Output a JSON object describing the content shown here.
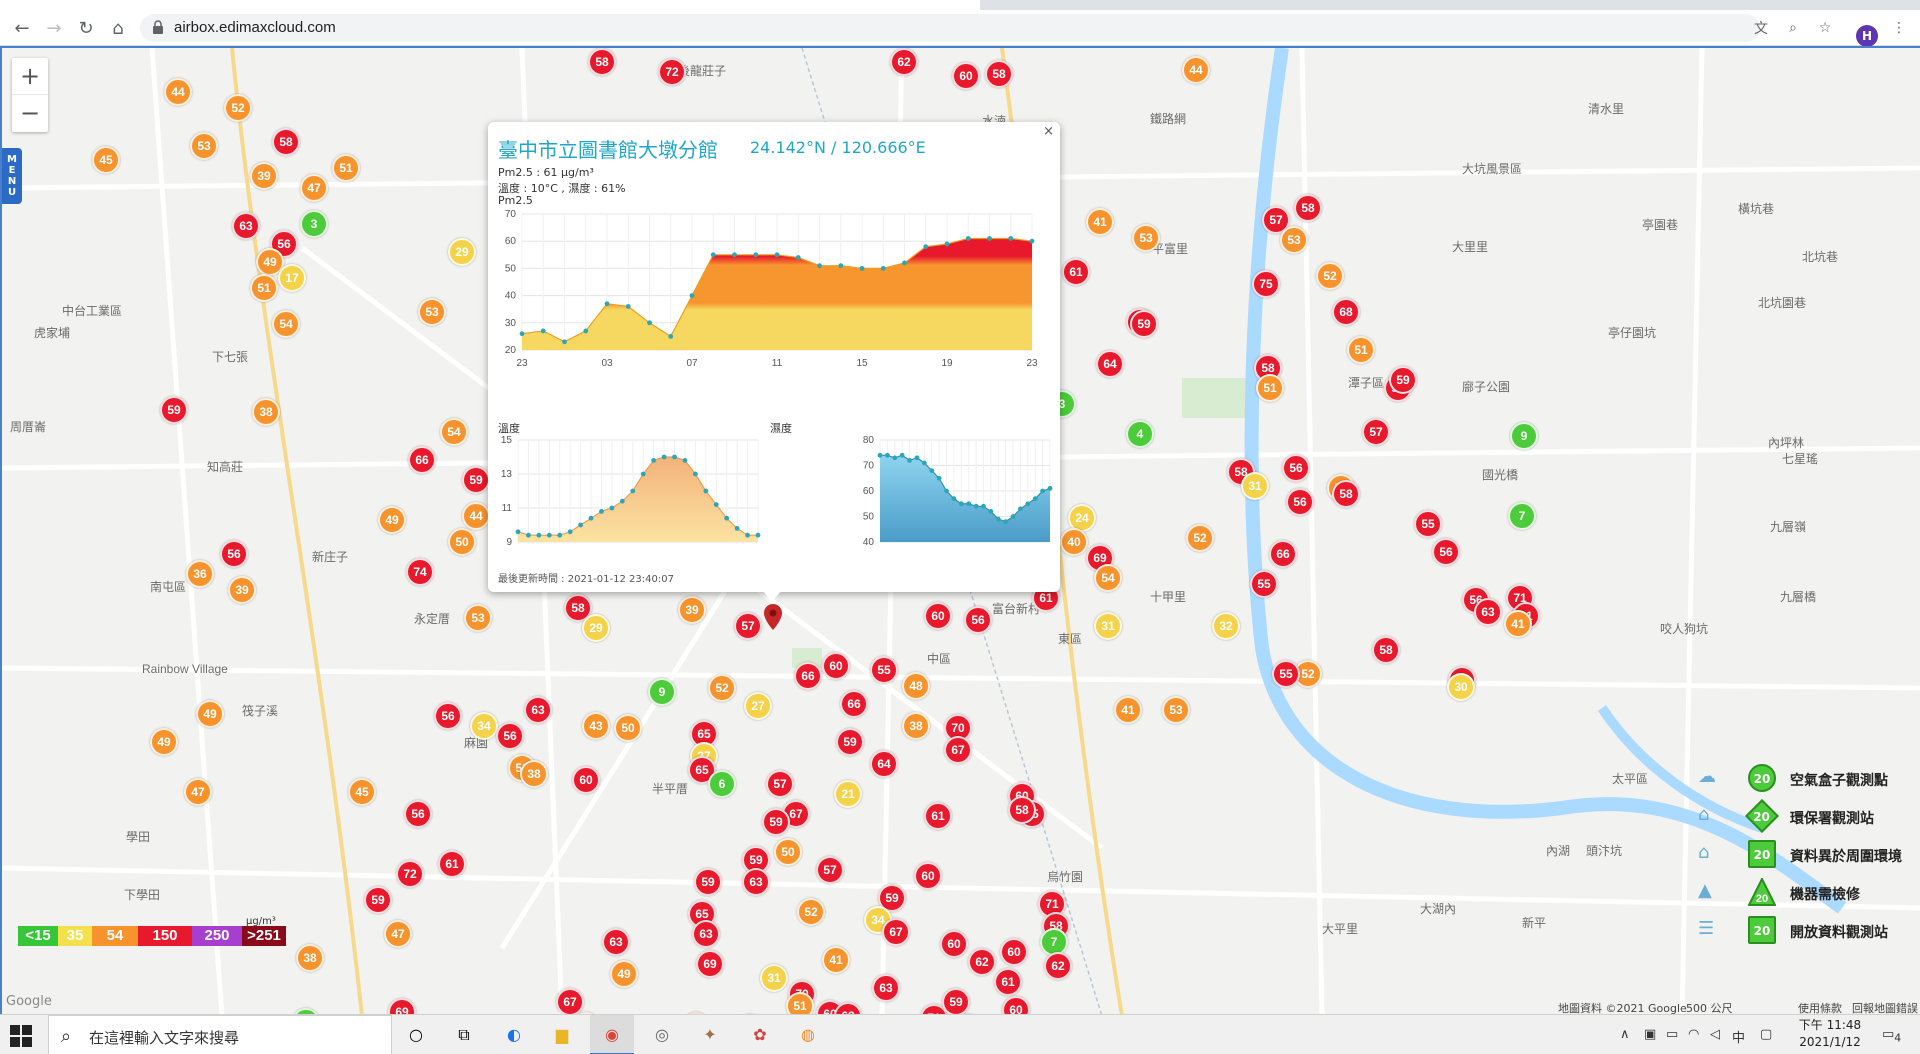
{
  "browser": {
    "url": "airbox.edimaxcloud.com",
    "profile_initial": "H"
  },
  "map": {
    "zoom_in": "+",
    "zoom_out": "−",
    "menu_label": "MENU",
    "places": [
      {
        "text": "後龍莊子"
      },
      {
        "text": "水湳"
      },
      {
        "text": "鐵路網"
      },
      {
        "text": "平富里"
      },
      {
        "text": "中台工業區"
      },
      {
        "text": "虎家埔"
      },
      {
        "text": "下七張"
      },
      {
        "text": "周厝崙"
      },
      {
        "text": "知高莊"
      },
      {
        "text": "南屯區"
      },
      {
        "text": "新庄子"
      },
      {
        "text": "永定厝"
      },
      {
        "text": "麻園"
      },
      {
        "text": "Rainbow Village"
      },
      {
        "text": "筏子溪"
      },
      {
        "text": "學田"
      },
      {
        "text": "下學田"
      },
      {
        "text": "半平厝"
      },
      {
        "text": "中區"
      },
      {
        "text": "富台新村"
      },
      {
        "text": "東區"
      },
      {
        "text": "十甲里"
      },
      {
        "text": "大坑風景區"
      },
      {
        "text": "清水里"
      },
      {
        "text": "大里里"
      },
      {
        "text": "亭園巷"
      },
      {
        "text": "橫坑巷"
      },
      {
        "text": "北坑巷"
      },
      {
        "text": "北坑園巷"
      },
      {
        "text": "亭仔園坑"
      },
      {
        "text": "廍子公園"
      },
      {
        "text": "國光橋"
      },
      {
        "text": "內坪林"
      },
      {
        "text": "七星瑤"
      },
      {
        "text": "九層嶺"
      },
      {
        "text": "九層橋"
      },
      {
        "text": "咬人狗坑"
      },
      {
        "text": "太平區"
      },
      {
        "text": "頭汴坑"
      },
      {
        "text": "內湖"
      },
      {
        "text": "大湖內"
      },
      {
        "text": "烏竹園"
      },
      {
        "text": "大平里"
      },
      {
        "text": "新平"
      },
      {
        "text": "潭子區"
      }
    ],
    "markers": [
      {
        "v": "58",
        "c": "red"
      },
      {
        "v": "72",
        "c": "red"
      },
      {
        "v": "62",
        "c": "red"
      },
      {
        "v": "60",
        "c": "red"
      },
      {
        "v": "58",
        "c": "red"
      },
      {
        "v": "44",
        "c": "orange"
      },
      {
        "v": "44",
        "c": "orange"
      },
      {
        "v": "52",
        "c": "orange"
      },
      {
        "v": "45",
        "c": "orange"
      },
      {
        "v": "53",
        "c": "orange"
      },
      {
        "v": "39",
        "c": "orange"
      },
      {
        "v": "58",
        "c": "red"
      },
      {
        "v": "51",
        "c": "orange"
      },
      {
        "v": "47",
        "c": "orange"
      },
      {
        "v": "3",
        "c": "green"
      },
      {
        "v": "63",
        "c": "red"
      },
      {
        "v": "56",
        "c": "red"
      },
      {
        "v": "49",
        "c": "orange"
      },
      {
        "v": "51",
        "c": "orange"
      },
      {
        "v": "17",
        "c": "yellow"
      },
      {
        "v": "29",
        "c": "yellow"
      },
      {
        "v": "54",
        "c": "orange"
      },
      {
        "v": "53",
        "c": "orange"
      },
      {
        "v": "59",
        "c": "red"
      },
      {
        "v": "38",
        "c": "orange"
      },
      {
        "v": "54",
        "c": "orange"
      },
      {
        "v": "66",
        "c": "red"
      },
      {
        "v": "59",
        "c": "red"
      },
      {
        "v": "49",
        "c": "orange"
      },
      {
        "v": "44",
        "c": "orange"
      },
      {
        "v": "50",
        "c": "orange"
      },
      {
        "v": "56",
        "c": "red"
      },
      {
        "v": "36",
        "c": "orange"
      },
      {
        "v": "39",
        "c": "orange"
      },
      {
        "v": "74",
        "c": "red"
      },
      {
        "v": "53",
        "c": "orange"
      },
      {
        "v": "58",
        "c": "red"
      },
      {
        "v": "29",
        "c": "yellow"
      },
      {
        "v": "39",
        "c": "orange"
      },
      {
        "v": "57",
        "c": "red"
      },
      {
        "v": "9",
        "c": "green"
      },
      {
        "v": "52",
        "c": "orange"
      },
      {
        "v": "27",
        "c": "yellow"
      },
      {
        "v": "66",
        "c": "red"
      },
      {
        "v": "66",
        "c": "red"
      },
      {
        "v": "60",
        "c": "red"
      },
      {
        "v": "55",
        "c": "red"
      },
      {
        "v": "48",
        "c": "orange"
      },
      {
        "v": "60",
        "c": "red"
      },
      {
        "v": "56",
        "c": "red"
      },
      {
        "v": "61",
        "c": "red"
      },
      {
        "v": "41",
        "c": "orange"
      },
      {
        "v": "53",
        "c": "orange"
      },
      {
        "v": "49",
        "c": "orange"
      },
      {
        "v": "56",
        "c": "red"
      },
      {
        "v": "34",
        "c": "yellow"
      },
      {
        "v": "56",
        "c": "red"
      },
      {
        "v": "63",
        "c": "red"
      },
      {
        "v": "43",
        "c": "orange"
      },
      {
        "v": "50",
        "c": "orange"
      },
      {
        "v": "65",
        "c": "red"
      },
      {
        "v": "27",
        "c": "yellow"
      },
      {
        "v": "38",
        "c": "orange"
      },
      {
        "v": "70",
        "c": "red"
      },
      {
        "v": "67",
        "c": "red"
      },
      {
        "v": "59",
        "c": "red"
      },
      {
        "v": "65",
        "c": "red"
      },
      {
        "v": "64",
        "c": "red"
      },
      {
        "v": "49",
        "c": "orange"
      },
      {
        "v": "47",
        "c": "orange"
      },
      {
        "v": "45",
        "c": "orange"
      },
      {
        "v": "52",
        "c": "orange"
      },
      {
        "v": "38",
        "c": "orange"
      },
      {
        "v": "60",
        "c": "red"
      },
      {
        "v": "6",
        "c": "green"
      },
      {
        "v": "57",
        "c": "red"
      },
      {
        "v": "21",
        "c": "yellow"
      },
      {
        "v": "67",
        "c": "red"
      },
      {
        "v": "60",
        "c": "red"
      },
      {
        "v": "65",
        "c": "red"
      },
      {
        "v": "61",
        "c": "red"
      },
      {
        "v": "58",
        "c": "red"
      },
      {
        "v": "59",
        "c": "red"
      },
      {
        "v": "50",
        "c": "orange"
      },
      {
        "v": "59",
        "c": "red"
      },
      {
        "v": "57",
        "c": "red"
      },
      {
        "v": "60",
        "c": "red"
      },
      {
        "v": "59",
        "c": "red"
      },
      {
        "v": "63",
        "c": "red"
      },
      {
        "v": "59",
        "c": "red"
      },
      {
        "v": "52",
        "c": "orange"
      },
      {
        "v": "34",
        "c": "yellow"
      },
      {
        "v": "65",
        "c": "red"
      },
      {
        "v": "63",
        "c": "red"
      },
      {
        "v": "71",
        "c": "red"
      },
      {
        "v": "58",
        "c": "red"
      },
      {
        "v": "7",
        "c": "green"
      },
      {
        "v": "67",
        "c": "red"
      },
      {
        "v": "60",
        "c": "red"
      },
      {
        "v": "62",
        "c": "red"
      },
      {
        "v": "63",
        "c": "red"
      },
      {
        "v": "69",
        "c": "red"
      },
      {
        "v": "49",
        "c": "orange"
      },
      {
        "v": "31",
        "c": "yellow"
      },
      {
        "v": "70",
        "c": "red"
      },
      {
        "v": "60",
        "c": "red"
      },
      {
        "v": "68",
        "c": "red"
      },
      {
        "v": "62",
        "c": "red"
      },
      {
        "v": "61",
        "c": "red"
      },
      {
        "v": "60",
        "c": "red"
      },
      {
        "v": "71",
        "c": "red"
      },
      {
        "v": "63",
        "c": "red"
      },
      {
        "v": "41",
        "c": "orange"
      },
      {
        "v": "62",
        "c": "red"
      },
      {
        "v": "60",
        "c": "red"
      },
      {
        "v": "62",
        "c": "red"
      },
      {
        "v": "46",
        "c": "orange"
      },
      {
        "v": "51",
        "c": "orange"
      },
      {
        "v": "59",
        "c": "red"
      },
      {
        "v": "57",
        "c": "red"
      },
      {
        "v": "60",
        "c": "red"
      },
      {
        "v": "59",
        "c": "red"
      },
      {
        "v": "54",
        "c": "orange"
      },
      {
        "v": "67",
        "c": "red"
      },
      {
        "v": "67",
        "c": "red"
      },
      {
        "v": "69",
        "c": "red"
      },
      {
        "v": "52",
        "c": "orange"
      },
      {
        "v": "2",
        "c": "green"
      },
      {
        "v": "38",
        "c": "orange"
      },
      {
        "v": "47",
        "c": "orange"
      },
      {
        "v": "59",
        "c": "red"
      },
      {
        "v": "72",
        "c": "red"
      },
      {
        "v": "61",
        "c": "red"
      },
      {
        "v": "56",
        "c": "red"
      },
      {
        "v": "61",
        "c": "red"
      },
      {
        "v": "41",
        "c": "orange"
      },
      {
        "v": "53",
        "c": "orange"
      },
      {
        "v": "58",
        "c": "red"
      },
      {
        "v": "59",
        "c": "red"
      },
      {
        "v": "64",
        "c": "red"
      },
      {
        "v": "3",
        "c": "green"
      },
      {
        "v": "4",
        "c": "green"
      },
      {
        "v": "24",
        "c": "yellow"
      },
      {
        "v": "40",
        "c": "orange"
      },
      {
        "v": "69",
        "c": "red"
      },
      {
        "v": "54",
        "c": "orange"
      },
      {
        "v": "31",
        "c": "yellow"
      },
      {
        "v": "32",
        "c": "yellow"
      },
      {
        "v": "52",
        "c": "orange"
      },
      {
        "v": "75",
        "c": "red"
      },
      {
        "v": "57",
        "c": "red"
      },
      {
        "v": "58",
        "c": "red"
      },
      {
        "v": "53",
        "c": "orange"
      },
      {
        "v": "52",
        "c": "orange"
      },
      {
        "v": "68",
        "c": "red"
      },
      {
        "v": "58",
        "c": "red"
      },
      {
        "v": "51",
        "c": "orange"
      },
      {
        "v": "51",
        "c": "orange"
      },
      {
        "v": "55",
        "c": "red"
      },
      {
        "v": "59",
        "c": "red"
      },
      {
        "v": "57",
        "c": "red"
      },
      {
        "v": "58",
        "c": "red"
      },
      {
        "v": "31",
        "c": "yellow"
      },
      {
        "v": "56",
        "c": "red"
      },
      {
        "v": "54",
        "c": "orange"
      },
      {
        "v": "58",
        "c": "red"
      },
      {
        "v": "66",
        "c": "red"
      },
      {
        "v": "55",
        "c": "red"
      },
      {
        "v": "56",
        "c": "red"
      },
      {
        "v": "55",
        "c": "red"
      },
      {
        "v": "56",
        "c": "red"
      },
      {
        "v": "9",
        "c": "green"
      },
      {
        "v": "7",
        "c": "green"
      },
      {
        "v": "71",
        "c": "red"
      },
      {
        "v": "56",
        "c": "red"
      },
      {
        "v": "63",
        "c": "red"
      },
      {
        "v": "61",
        "c": "red"
      },
      {
        "v": "41",
        "c": "orange"
      },
      {
        "v": "52",
        "c": "orange"
      },
      {
        "v": "55",
        "c": "red"
      },
      {
        "v": "58",
        "c": "red"
      },
      {
        "v": "71",
        "c": "red"
      },
      {
        "v": "30",
        "c": "yellow"
      }
    ]
  },
  "popup": {
    "close": "×",
    "title": "臺中市立圖書館大墩分館",
    "coords": "24.142°N / 120.666°E",
    "pm25_line": "Pm2.5 : 61 μg/m³",
    "temp_humidity_line": "溫度 : 10°C , 濕度 : 61%",
    "chart_label": "Pm2.5",
    "temp_label": "溫度",
    "humidity_label": "濕度",
    "updated": "最後更新時間 : 2021-01-12 23:40:07"
  },
  "chart_data": [
    {
      "type": "area",
      "title": "Pm2.5",
      "x": [
        "23",
        "",
        "",
        "",
        "03",
        "",
        "",
        "",
        "07",
        "",
        "",
        "",
        "11",
        "",
        "",
        "",
        "15",
        "",
        "",
        "",
        "19",
        "",
        "",
        "",
        "23"
      ],
      "x_ticks": [
        "23",
        "03",
        "07",
        "11",
        "15",
        "19",
        "23"
      ],
      "series": [
        {
          "values": [
            26,
            27,
            23,
            27,
            37,
            36,
            30,
            25,
            40,
            55,
            55,
            55,
            55,
            54,
            51,
            51,
            50,
            50,
            52,
            58,
            59,
            61,
            61,
            61,
            60
          ]
        }
      ],
      "ylim": [
        20,
        70
      ],
      "y_ticks": [
        20,
        30,
        40,
        50,
        60,
        70
      ],
      "band_colors": {
        "low": "#f6d860",
        "mid": "#f7962f",
        "high": "#e8192c"
      },
      "grid": true
    },
    {
      "type": "area",
      "title": "溫度",
      "series": [
        {
          "values": [
            9.6,
            9.4,
            9.4,
            9.4,
            9.4,
            9.6,
            10,
            10.4,
            10.8,
            11,
            11.4,
            12,
            13,
            13.8,
            14,
            14,
            13.8,
            13,
            12,
            11.2,
            10.4,
            9.8,
            9.4,
            9.4
          ]
        }
      ],
      "ylim": [
        9,
        15
      ],
      "y_ticks": [
        9,
        11,
        13,
        15
      ],
      "grid": true
    },
    {
      "type": "area",
      "title": "濕度",
      "series": [
        {
          "values": [
            74,
            74,
            73,
            74,
            72,
            73,
            71,
            68,
            65,
            60,
            57,
            55,
            55,
            54,
            54,
            52,
            49,
            48,
            50,
            53,
            55,
            57,
            60,
            61
          ]
        }
      ],
      "ylim": [
        40,
        80
      ],
      "y_ticks": [
        40,
        50,
        60,
        70,
        80
      ],
      "grid": true
    }
  ],
  "scale": [
    {
      "text": "<15",
      "color": "#36c63a"
    },
    {
      "text": "35",
      "color": "#f4e04a"
    },
    {
      "text": "54",
      "color": "#f7932d"
    },
    {
      "text": "150",
      "color": "#e8192c"
    },
    {
      "text": "250",
      "color": "#a83ecf"
    },
    {
      "text": ">251",
      "color": "#8b0a1a"
    }
  ],
  "scale_unit": "μg/m³",
  "legend": [
    {
      "value": "20",
      "label": "空氣盒子觀測點",
      "shape": "circle"
    },
    {
      "value": "20",
      "label": "環保署觀測站",
      "shape": "diamond"
    },
    {
      "value": "20",
      "label": "資料異於周圍環境",
      "shape": "square"
    },
    {
      "value": "20",
      "label": "機器需檢修",
      "shape": "triangle"
    },
    {
      "value": "20",
      "label": "開放資料觀測站",
      "shape": "square"
    }
  ],
  "attribution": {
    "google": "Google",
    "map_data": "地圖資料 ©2021 Google",
    "scale": "500 公尺",
    "terms": "使用條款",
    "report": "回報地圖錯誤"
  },
  "taskbar": {
    "search_placeholder": "在這裡輸入文字來搜尋",
    "ime": "中",
    "time": "下午 11:48",
    "date": "2021/1/12",
    "notification_count": "4"
  }
}
